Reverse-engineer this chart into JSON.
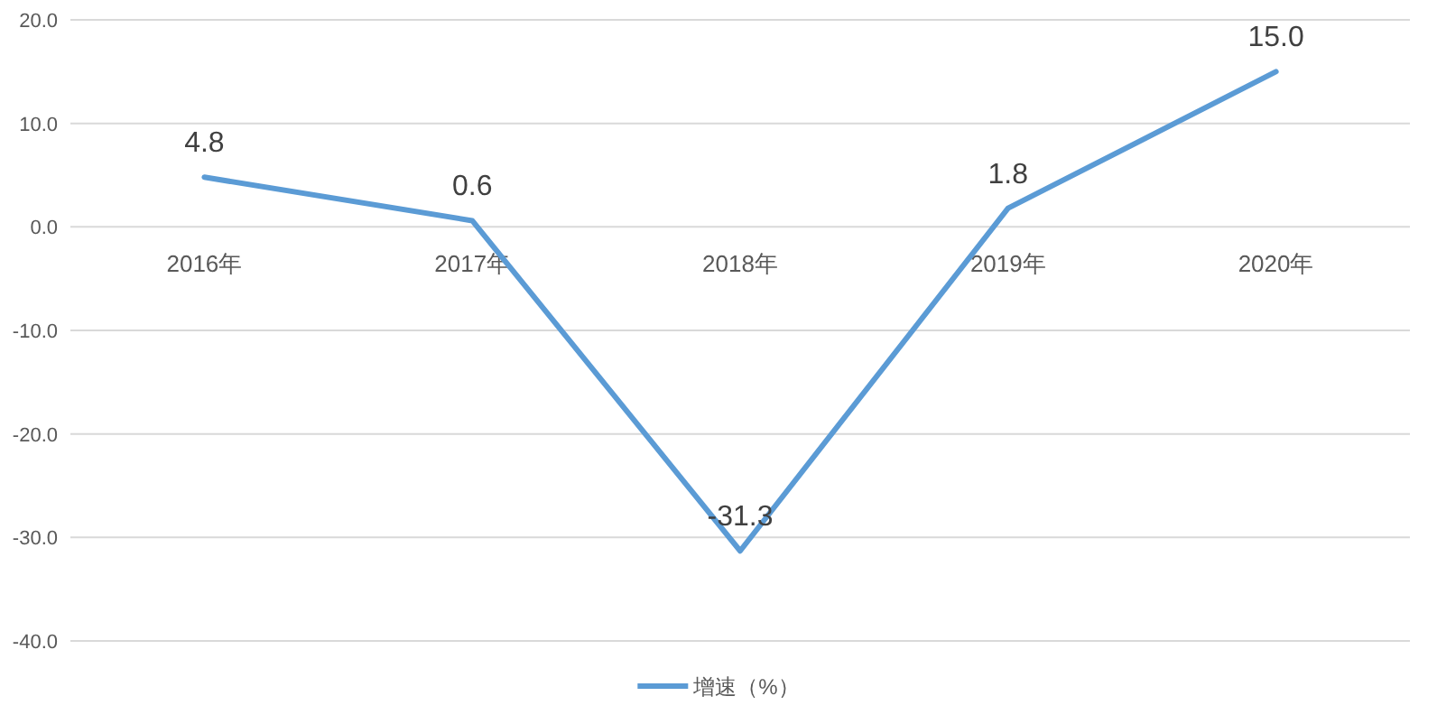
{
  "chart_data": {
    "type": "line",
    "categories": [
      "2016年",
      "2017年",
      "2018年",
      "2019年",
      "2020年"
    ],
    "series": [
      {
        "name": "增速（%）",
        "color": "#5b9bd5",
        "values": [
          4.8,
          0.6,
          -31.3,
          1.8,
          15.0
        ],
        "value_labels": [
          "4.8",
          "0.6",
          "-31.3",
          "1.8",
          "15.0"
        ]
      }
    ],
    "ylim": [
      -40,
      20
    ],
    "yticks": [
      {
        "value": -40,
        "label": "-40.0"
      },
      {
        "value": -30,
        "label": "-30.0"
      },
      {
        "value": -20,
        "label": "-20.0"
      },
      {
        "value": -10,
        "label": "-10.0"
      },
      {
        "value": 0,
        "label": "0.0"
      },
      {
        "value": 10,
        "label": "10.0"
      },
      {
        "value": 20,
        "label": "20.0"
      }
    ],
    "grid": "y",
    "legend": "bottom",
    "marker": "none",
    "line_style": "solid"
  }
}
